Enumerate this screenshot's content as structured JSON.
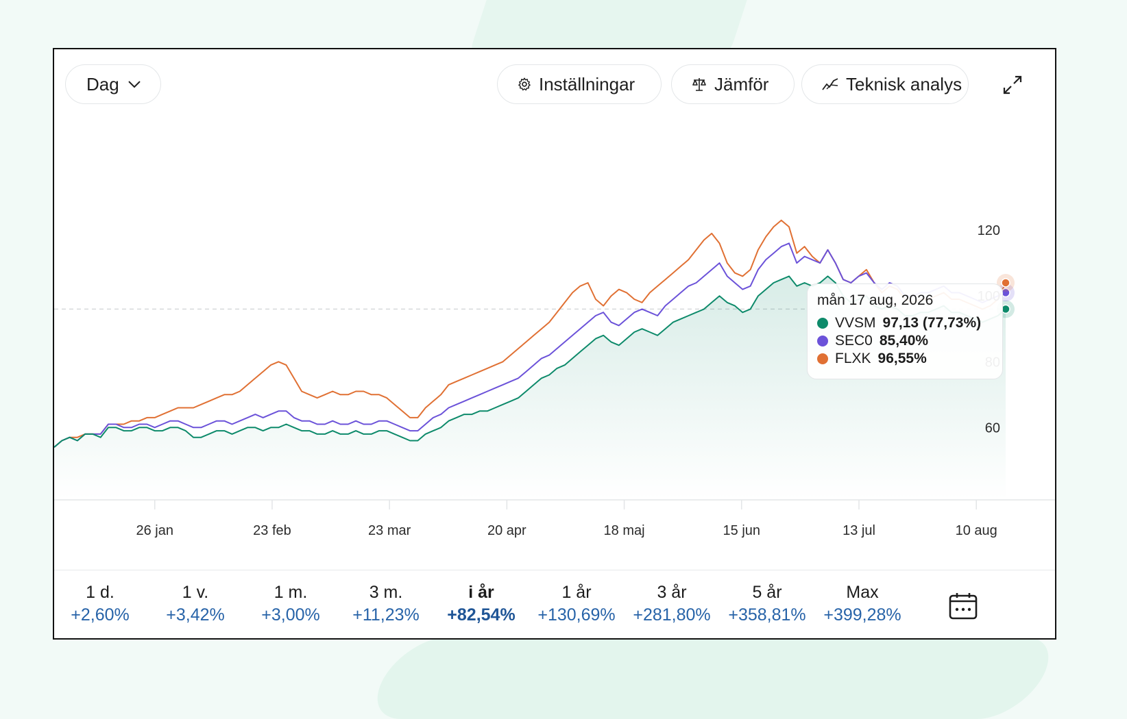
{
  "toolbar": {
    "period_select": "Dag",
    "settings_label": "Inställningar",
    "compare_label": "Jämför",
    "technical_analysis_label": "Teknisk analys",
    "icons": [
      "chevron-down-icon",
      "gear-icon",
      "scale-icon",
      "line-chart-icon",
      "expand-icon"
    ]
  },
  "tooltip": {
    "date": "mån 17 aug, 2026",
    "rows": [
      {
        "name": "VVSM",
        "value": "97,13 (77,73%)",
        "color": "#0d8a6a"
      },
      {
        "name": "SEC0",
        "value": "85,40%",
        "color": "#6b52d9"
      },
      {
        "name": "FLXK",
        "value": "96,55%",
        "color": "#e07033"
      }
    ]
  },
  "chart_data": {
    "type": "line",
    "x_ticks": [
      "26 jan",
      "23 feb",
      "23 mar",
      "20 apr",
      "18 maj",
      "15 jun",
      "13 jul",
      "10 aug"
    ],
    "y_ticks": [
      60,
      80,
      100,
      120
    ],
    "ylim": [
      38,
      150
    ],
    "x_range": [
      "2026-01-02",
      "2026-08-17"
    ],
    "grid": false,
    "reference_line": 96,
    "series": [
      {
        "name": "VVSM",
        "color": "#0d8a6a",
        "values": [
          54,
          56,
          57,
          56,
          58,
          58,
          57,
          60,
          60,
          59,
          59,
          60,
          60,
          59,
          59,
          60,
          60,
          59,
          57,
          57,
          58,
          59,
          59,
          58,
          59,
          60,
          60,
          59,
          60,
          60,
          61,
          60,
          59,
          59,
          58,
          58,
          59,
          58,
          58,
          59,
          58,
          58,
          59,
          59,
          58,
          57,
          56,
          56,
          58,
          59,
          60,
          62,
          63,
          64,
          64,
          65,
          65,
          66,
          67,
          68,
          69,
          71,
          73,
          75,
          76,
          78,
          79,
          81,
          83,
          85,
          87,
          88,
          86,
          85,
          87,
          89,
          90,
          89,
          88,
          90,
          92,
          93,
          94,
          95,
          96,
          98,
          100,
          98,
          97,
          95,
          96,
          100,
          102,
          104,
          105,
          106,
          103,
          104,
          103,
          104,
          106,
          104,
          100,
          98,
          99,
          100,
          97,
          96,
          97,
          96,
          94,
          94,
          95,
          95,
          96,
          97,
          95,
          95,
          94,
          93,
          92,
          93,
          94,
          96
        ]
      },
      {
        "name": "SEC0",
        "color": "#6b52d9",
        "values": [
          54,
          56,
          57,
          56,
          58,
          58,
          58,
          61,
          61,
          60,
          60,
          61,
          61,
          60,
          61,
          62,
          62,
          61,
          60,
          60,
          61,
          62,
          62,
          61,
          62,
          63,
          64,
          63,
          64,
          65,
          65,
          63,
          62,
          62,
          61,
          61,
          62,
          61,
          61,
          62,
          61,
          61,
          62,
          62,
          61,
          60,
          59,
          59,
          61,
          63,
          64,
          66,
          67,
          68,
          69,
          70,
          71,
          72,
          73,
          74,
          75,
          77,
          79,
          81,
          82,
          84,
          86,
          88,
          90,
          92,
          94,
          95,
          92,
          91,
          93,
          95,
          96,
          95,
          94,
          97,
          99,
          101,
          103,
          104,
          106,
          108,
          110,
          106,
          104,
          102,
          103,
          108,
          111,
          113,
          115,
          116,
          110,
          112,
          111,
          110,
          114,
          110,
          105,
          104,
          106,
          107,
          104,
          102,
          104,
          103,
          100,
          100,
          101,
          101,
          102,
          103,
          101,
          101,
          100,
          99,
          98,
          99,
          100,
          101
        ]
      },
      {
        "name": "FLXK",
        "color": "#e07033",
        "values": [
          54,
          56,
          57,
          57,
          58,
          58,
          58,
          61,
          61,
          61,
          62,
          62,
          63,
          63,
          64,
          65,
          66,
          66,
          66,
          67,
          68,
          69,
          70,
          70,
          71,
          73,
          75,
          77,
          79,
          80,
          79,
          75,
          71,
          70,
          69,
          70,
          71,
          70,
          70,
          71,
          71,
          70,
          70,
          69,
          67,
          65,
          63,
          63,
          66,
          68,
          70,
          73,
          74,
          75,
          76,
          77,
          78,
          79,
          80,
          82,
          84,
          86,
          88,
          90,
          92,
          95,
          98,
          101,
          103,
          104,
          99,
          97,
          100,
          102,
          101,
          99,
          98,
          101,
          103,
          105,
          107,
          109,
          111,
          114,
          117,
          119,
          116,
          110,
          107,
          106,
          108,
          114,
          118,
          121,
          123,
          121,
          113,
          115,
          112,
          110,
          114,
          110,
          105,
          104,
          106,
          108,
          104,
          101,
          103,
          102,
          99,
          98,
          99,
          99,
          100,
          101,
          99,
          99,
          98,
          97,
          96,
          97,
          99,
          104
        ]
      }
    ]
  },
  "periods": [
    {
      "label": "1 d.",
      "value": "+2,60%"
    },
    {
      "label": "1 v.",
      "value": "+3,42%"
    },
    {
      "label": "1 m.",
      "value": "+3,00%"
    },
    {
      "label": "3 m.",
      "value": "+11,23%"
    },
    {
      "label": "i år",
      "value": "+82,54%",
      "active": true
    },
    {
      "label": "1 år",
      "value": "+130,69%"
    },
    {
      "label": "3 år",
      "value": "+281,80%"
    },
    {
      "label": "5 år",
      "value": "+358,81%"
    },
    {
      "label": "Max",
      "value": "+399,28%"
    }
  ]
}
